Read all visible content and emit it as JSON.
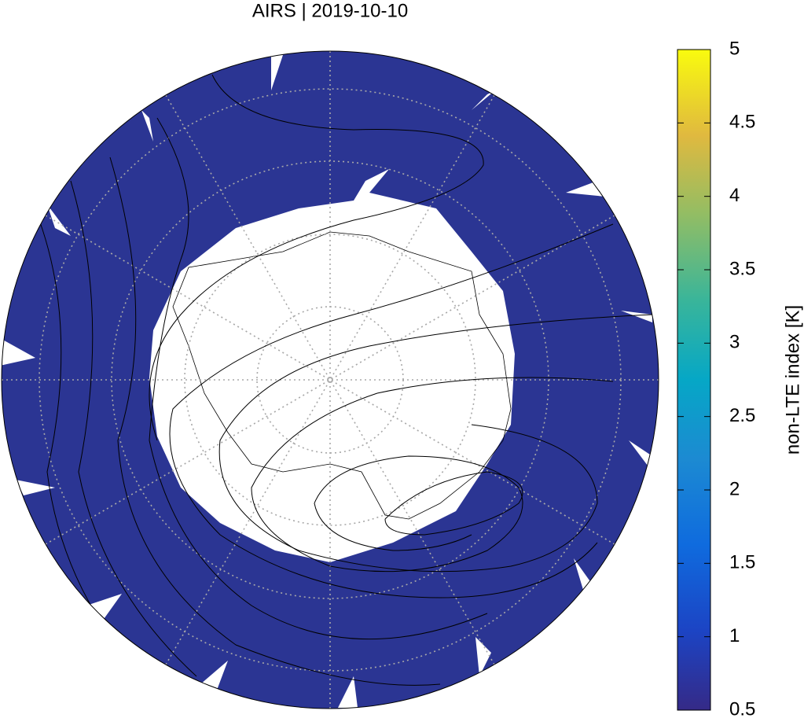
{
  "title": "AIRS | 2019-10-10",
  "colorbar": {
    "label": "non-LTE index [K]",
    "lim": [
      0.5,
      5
    ],
    "ticks": [
      0.5,
      1,
      1.5,
      2,
      2.5,
      3,
      3.5,
      4,
      4.5,
      5
    ]
  }
}
